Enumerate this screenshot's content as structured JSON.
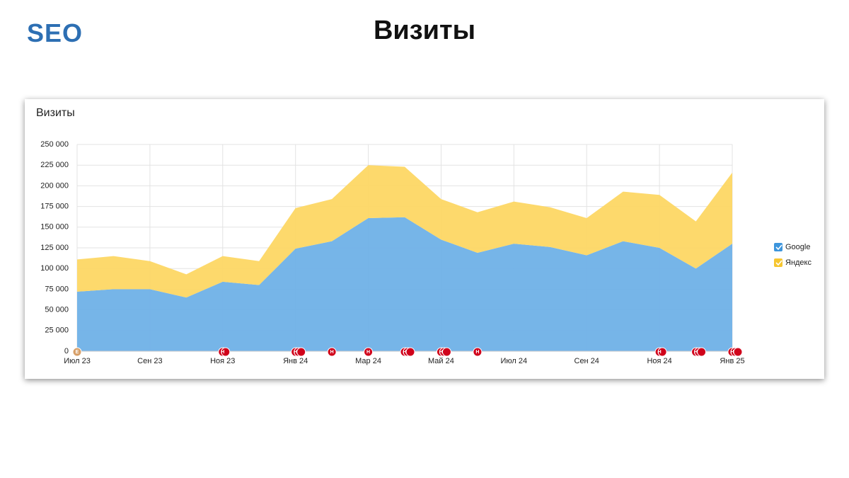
{
  "header": {
    "logo": "SEO",
    "title": "Визиты"
  },
  "chart_data": {
    "type": "stacked-area",
    "title": "Визиты",
    "categories": [
      "Июл 23",
      null,
      "Сен 23",
      null,
      "Ноя 23",
      null,
      "Янв 24",
      null,
      "Мар 24",
      null,
      "Май 24",
      null,
      "Июл 24",
      null,
      "Сен 24",
      null,
      "Ноя 24",
      null,
      "Янв 25"
    ],
    "series": [
      {
        "name": "Google",
        "color": "#6fb1e7",
        "values": [
          72000,
          75000,
          75000,
          65000,
          84000,
          80000,
          124000,
          133000,
          161000,
          162000,
          135000,
          119000,
          130000,
          126000,
          116000,
          133000,
          125000,
          100000,
          130000
        ]
      },
      {
        "name": "Яндекс",
        "color": "#fdd764",
        "values": [
          39000,
          40000,
          34000,
          28000,
          31000,
          29000,
          49000,
          51000,
          64000,
          61000,
          49000,
          49000,
          51000,
          48000,
          45000,
          60000,
          64000,
          57000,
          86000
        ]
      }
    ],
    "ylim": [
      0,
      250000
    ],
    "yticks": [
      0,
      {
        "value": 25000,
        "label": "25 000"
      },
      {
        "value": 50000,
        "label": "50 000"
      },
      {
        "value": 75000,
        "label": "75 000"
      },
      {
        "value": 100000,
        "label": "100 000"
      },
      {
        "value": 125000,
        "label": "125 000"
      },
      {
        "value": 150000,
        "label": "150 000"
      },
      {
        "value": 175000,
        "label": "175 000"
      },
      {
        "value": 200000,
        "label": "200 000"
      },
      {
        "value": 225000,
        "label": "225 000"
      },
      {
        "value": 250000,
        "label": "250 000"
      }
    ],
    "grid": true,
    "legend": "right",
    "events": [
      [
        "Е"
      ],
      [],
      [],
      [],
      [
        "Н",
        "Н"
      ],
      [],
      [
        "Н",
        "Н",
        "Н"
      ],
      [
        "Н"
      ],
      [
        "Н"
      ],
      [
        "Н",
        "Н",
        "Н"
      ],
      [
        "Н",
        "Н",
        "Н"
      ],
      [
        "Н"
      ],
      [],
      [],
      [],
      [],
      [
        "Н",
        "Н"
      ],
      [
        "Н",
        "Н",
        "Н"
      ],
      [
        "Н",
        "Н",
        "Н"
      ]
    ]
  }
}
